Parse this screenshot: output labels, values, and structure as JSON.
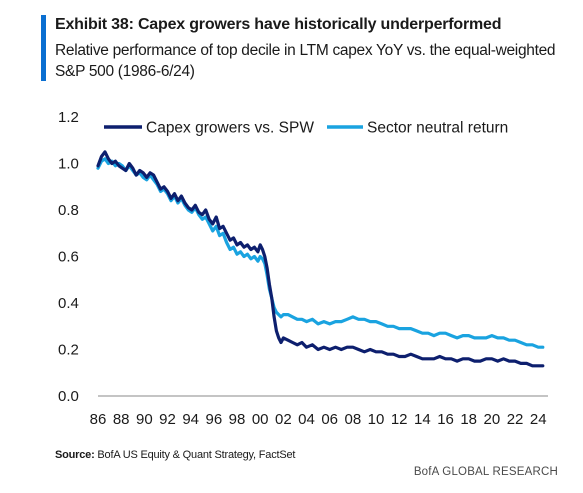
{
  "header": {
    "title": "Exhibit 38: Capex growers have historically underperformed",
    "subtitle": "Relative performance of top decile in LTM capex YoY vs. the equal-weighted S&P 500 (1986-6/24)"
  },
  "footer": {
    "source_label": "Source:",
    "source_text": " BofA US Equity & Quant Strategy, FactSet",
    "brand": "BofA GLOBAL RESEARCH"
  },
  "colors": {
    "accent": "#0a6fd1",
    "series_dark": "#0d1f6e",
    "series_light": "#1aa3e0"
  },
  "chart_data": {
    "type": "line",
    "ylim": [
      0.0,
      1.2
    ],
    "xlim": [
      1986,
      2024.5
    ],
    "yticks": [
      "0.0",
      "0.2",
      "0.4",
      "0.6",
      "0.8",
      "1.0",
      "1.2"
    ],
    "yticks_values": [
      0.0,
      0.2,
      0.4,
      0.6,
      0.8,
      1.0,
      1.2
    ],
    "xticks": [
      "86",
      "88",
      "90",
      "92",
      "94",
      "96",
      "98",
      "00",
      "02",
      "04",
      "06",
      "08",
      "10",
      "12",
      "14",
      "16",
      "18",
      "20",
      "22",
      "24"
    ],
    "xticks_values": [
      1986,
      1988,
      1990,
      1992,
      1994,
      1996,
      1998,
      2000,
      2002,
      2004,
      2006,
      2008,
      2010,
      2012,
      2014,
      2016,
      2018,
      2020,
      2022,
      2024
    ],
    "grid": false,
    "legend_position": "top",
    "series": [
      {
        "name": "Capex growers vs. SPW",
        "color": "#0d1f6e",
        "x": [
          1986.0,
          1986.3,
          1986.6,
          1986.9,
          1987.2,
          1987.5,
          1987.8,
          1988.1,
          1988.4,
          1988.7,
          1989.0,
          1989.3,
          1989.6,
          1989.9,
          1990.2,
          1990.5,
          1990.8,
          1991.1,
          1991.4,
          1991.7,
          1992.0,
          1992.3,
          1992.6,
          1992.9,
          1993.2,
          1993.5,
          1993.8,
          1994.1,
          1994.4,
          1994.7,
          1995.0,
          1995.3,
          1995.6,
          1995.9,
          1996.2,
          1996.5,
          1996.8,
          1997.1,
          1997.4,
          1997.7,
          1998.0,
          1998.3,
          1998.6,
          1998.9,
          1999.2,
          1999.5,
          1999.8,
          2000.0,
          2000.2,
          2000.4,
          2000.6,
          2000.8,
          2001.0,
          2001.2,
          2001.4,
          2001.6,
          2001.8,
          2002.0,
          2002.4,
          2002.8,
          2003.2,
          2003.6,
          2004.0,
          2004.5,
          2005.0,
          2005.5,
          2006.0,
          2006.5,
          2007.0,
          2007.5,
          2008.0,
          2008.5,
          2009.0,
          2009.5,
          2010.0,
          2010.5,
          2011.0,
          2011.5,
          2012.0,
          2012.5,
          2013.0,
          2013.5,
          2014.0,
          2014.5,
          2015.0,
          2015.5,
          2016.0,
          2016.5,
          2017.0,
          2017.5,
          2018.0,
          2018.5,
          2019.0,
          2019.5,
          2020.0,
          2020.5,
          2021.0,
          2021.5,
          2022.0,
          2022.5,
          2023.0,
          2023.5,
          2024.0,
          2024.4
        ],
        "values": [
          0.99,
          1.03,
          1.05,
          1.02,
          1.0,
          1.01,
          0.99,
          0.98,
          0.97,
          1.0,
          0.98,
          0.95,
          0.97,
          0.96,
          0.94,
          0.96,
          0.95,
          0.92,
          0.89,
          0.9,
          0.88,
          0.85,
          0.87,
          0.84,
          0.86,
          0.83,
          0.81,
          0.8,
          0.82,
          0.79,
          0.78,
          0.8,
          0.76,
          0.74,
          0.77,
          0.72,
          0.73,
          0.7,
          0.67,
          0.68,
          0.65,
          0.66,
          0.64,
          0.65,
          0.63,
          0.64,
          0.62,
          0.65,
          0.63,
          0.6,
          0.55,
          0.48,
          0.42,
          0.34,
          0.28,
          0.25,
          0.23,
          0.25,
          0.24,
          0.23,
          0.22,
          0.23,
          0.21,
          0.22,
          0.2,
          0.21,
          0.2,
          0.21,
          0.2,
          0.21,
          0.21,
          0.2,
          0.19,
          0.2,
          0.19,
          0.19,
          0.18,
          0.18,
          0.17,
          0.17,
          0.18,
          0.17,
          0.16,
          0.16,
          0.16,
          0.17,
          0.16,
          0.16,
          0.15,
          0.16,
          0.16,
          0.15,
          0.15,
          0.16,
          0.16,
          0.15,
          0.16,
          0.15,
          0.15,
          0.14,
          0.14,
          0.13,
          0.13,
          0.13
        ]
      },
      {
        "name": "Sector neutral return",
        "color": "#1aa3e0",
        "x": [
          1986.0,
          1986.3,
          1986.6,
          1986.9,
          1987.2,
          1987.5,
          1987.8,
          1988.1,
          1988.4,
          1988.7,
          1989.0,
          1989.3,
          1989.6,
          1989.9,
          1990.2,
          1990.5,
          1990.8,
          1991.1,
          1991.4,
          1991.7,
          1992.0,
          1992.3,
          1992.6,
          1992.9,
          1993.2,
          1993.5,
          1993.8,
          1994.1,
          1994.4,
          1994.7,
          1995.0,
          1995.3,
          1995.6,
          1995.9,
          1996.2,
          1996.5,
          1996.8,
          1997.1,
          1997.4,
          1997.7,
          1998.0,
          1998.3,
          1998.6,
          1998.9,
          1999.2,
          1999.5,
          1999.8,
          2000.0,
          2000.2,
          2000.4,
          2000.6,
          2000.8,
          2001.0,
          2001.2,
          2001.4,
          2001.6,
          2001.8,
          2002.0,
          2002.4,
          2002.8,
          2003.2,
          2003.6,
          2004.0,
          2004.5,
          2005.0,
          2005.5,
          2006.0,
          2006.5,
          2007.0,
          2007.5,
          2008.0,
          2008.5,
          2009.0,
          2009.5,
          2010.0,
          2010.5,
          2011.0,
          2011.5,
          2012.0,
          2012.5,
          2013.0,
          2013.5,
          2014.0,
          2014.5,
          2015.0,
          2015.5,
          2016.0,
          2016.5,
          2017.0,
          2017.5,
          2018.0,
          2018.5,
          2019.0,
          2019.5,
          2020.0,
          2020.5,
          2021.0,
          2021.5,
          2022.0,
          2022.5,
          2023.0,
          2023.5,
          2024.0,
          2024.4
        ],
        "values": [
          0.98,
          1.01,
          1.02,
          1.0,
          1.01,
          0.99,
          1.0,
          0.99,
          0.97,
          0.99,
          0.97,
          0.95,
          0.96,
          0.94,
          0.93,
          0.95,
          0.93,
          0.91,
          0.88,
          0.89,
          0.87,
          0.84,
          0.86,
          0.83,
          0.85,
          0.82,
          0.8,
          0.79,
          0.81,
          0.78,
          0.76,
          0.77,
          0.74,
          0.71,
          0.73,
          0.69,
          0.7,
          0.66,
          0.63,
          0.64,
          0.61,
          0.62,
          0.6,
          0.61,
          0.59,
          0.6,
          0.58,
          0.6,
          0.59,
          0.57,
          0.52,
          0.46,
          0.42,
          0.38,
          0.36,
          0.35,
          0.34,
          0.35,
          0.35,
          0.34,
          0.33,
          0.33,
          0.32,
          0.33,
          0.31,
          0.32,
          0.31,
          0.32,
          0.32,
          0.33,
          0.34,
          0.33,
          0.33,
          0.32,
          0.32,
          0.31,
          0.3,
          0.3,
          0.29,
          0.29,
          0.29,
          0.28,
          0.27,
          0.27,
          0.26,
          0.27,
          0.27,
          0.26,
          0.25,
          0.26,
          0.26,
          0.25,
          0.25,
          0.25,
          0.26,
          0.25,
          0.25,
          0.24,
          0.24,
          0.23,
          0.22,
          0.22,
          0.21,
          0.21
        ]
      }
    ]
  }
}
